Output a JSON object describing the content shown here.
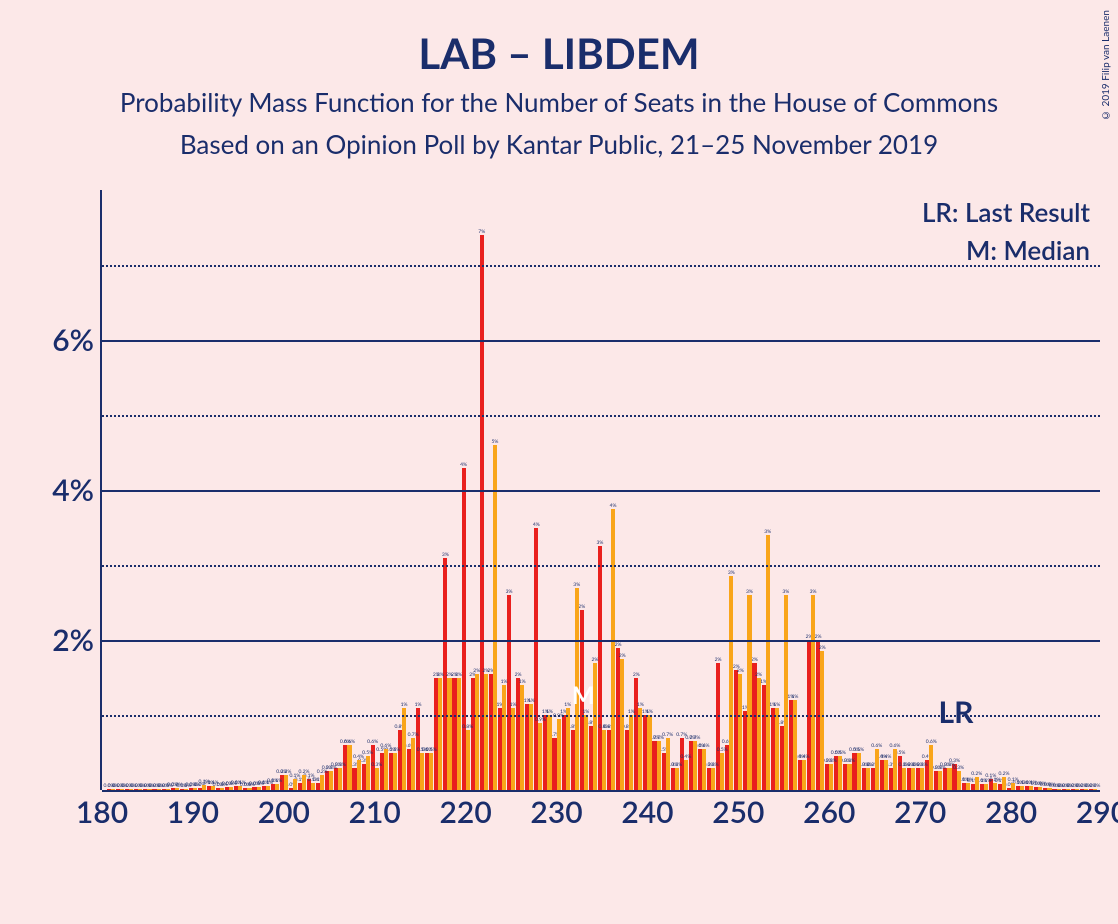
{
  "title": "LAB – LIBDEM",
  "subtitle1": "Probability Mass Function for the Number of Seats in the House of Commons",
  "subtitle2": "Based on an Opinion Poll by Kantar Public, 21–25 November 2019",
  "copyright": "© 2019 Filip van Laenen",
  "legend": {
    "lr": "LR: Last Result",
    "m": "M: Median"
  },
  "marker_lr": "LR",
  "marker_m": "M",
  "colors": {
    "background": "#fce8e8",
    "text": "#1a2d6b",
    "series1": "#e9201e",
    "series2": "#f9a51a"
  },
  "chart": {
    "type": "bar",
    "x_min": 180,
    "x_max": 290,
    "y_min": 0,
    "y_max": 8,
    "y_ticks": [
      0,
      2,
      4,
      6
    ],
    "y_minor": [
      1,
      3,
      5,
      7
    ],
    "x_ticks": [
      180,
      190,
      200,
      210,
      220,
      230,
      240,
      250,
      260,
      270,
      280,
      290
    ],
    "bar_group_width": 0.9,
    "median_x": 233,
    "lr_x": 274,
    "series": [
      {
        "name": "red",
        "color": "#e9201e",
        "data": {
          "181": 0.02,
          "182": 0.02,
          "183": 0.02,
          "184": 0.02,
          "185": 0.02,
          "186": 0.02,
          "187": 0.02,
          "188": 0.03,
          "189": 0.02,
          "190": 0.03,
          "191": 0.03,
          "192": 0.05,
          "193": 0.03,
          "194": 0.04,
          "195": 0.06,
          "196": 0.03,
          "197": 0.04,
          "198": 0.05,
          "199": 0.08,
          "200": 0.2,
          "201": 0.03,
          "202": 0.1,
          "203": 0.15,
          "204": 0.1,
          "205": 0.25,
          "206": 0.3,
          "207": 0.6,
          "208": 0.3,
          "209": 0.35,
          "210": 0.6,
          "211": 0.5,
          "212": 0.5,
          "213": 0.8,
          "214": 0.55,
          "215": 1.1,
          "216": 0.5,
          "217": 1.5,
          "218": 3.1,
          "219": 1.5,
          "220": 4.3,
          "221": 1.5,
          "222": 7.4,
          "223": 1.55,
          "224": 1.1,
          "225": 2.6,
          "226": 1.5,
          "227": 1.15,
          "228": 3.5,
          "229": 1.0,
          "230": 0.7,
          "231": 1.0,
          "232": 0.8,
          "233": 2.4,
          "234": 0.85,
          "235": 3.25,
          "236": 0.8,
          "237": 1.9,
          "238": 0.8,
          "239": 1.5,
          "240": 1.0,
          "241": 0.65,
          "242": 0.5,
          "243": 0.3,
          "244": 0.7,
          "245": 0.65,
          "246": 0.55,
          "247": 0.3,
          "248": 1.7,
          "249": 0.6,
          "250": 1.6,
          "251": 1.05,
          "252": 1.7,
          "253": 1.4,
          "254": 1.1,
          "255": 0.85,
          "256": 1.2,
          "257": 0.4,
          "258": 2.0,
          "259": 2.0,
          "260": 0.35,
          "261": 0.45,
          "262": 0.35,
          "263": 0.5,
          "264": 0.3,
          "265": 0.3,
          "266": 0.4,
          "267": 0.3,
          "268": 0.45,
          "269": 0.3,
          "270": 0.3,
          "271": 0.4,
          "272": 0.25,
          "273": 0.3,
          "274": 0.35,
          "275": 0.1,
          "276": 0.08,
          "277": 0.08,
          "278": 0.15,
          "279": 0.08,
          "280": 0.03,
          "281": 0.05,
          "282": 0.05,
          "283": 0.04,
          "284": 0.03,
          "285": 0.02,
          "286": 0.02,
          "287": 0.02,
          "288": 0.02,
          "289": 0.01
        }
      },
      {
        "name": "orange",
        "color": "#f9a51a",
        "data": {
          "181": 0.02,
          "182": 0.02,
          "183": 0.02,
          "184": 0.02,
          "185": 0.02,
          "186": 0.02,
          "187": 0.02,
          "188": 0.03,
          "189": 0.02,
          "190": 0.03,
          "191": 0.07,
          "192": 0.05,
          "193": 0.03,
          "194": 0.04,
          "195": 0.06,
          "196": 0.03,
          "197": 0.04,
          "198": 0.05,
          "199": 0.08,
          "200": 0.2,
          "201": 0.15,
          "202": 0.2,
          "203": 0.1,
          "204": 0.2,
          "205": 0.25,
          "206": 0.3,
          "207": 0.6,
          "208": 0.4,
          "209": 0.45,
          "210": 0.3,
          "211": 0.55,
          "212": 0.5,
          "213": 1.1,
          "214": 0.7,
          "215": 0.5,
          "216": 0.5,
          "217": 1.5,
          "218": 1.5,
          "219": 1.5,
          "220": 0.8,
          "221": 1.55,
          "222": 1.55,
          "223": 4.6,
          "224": 1.4,
          "225": 1.1,
          "226": 1.4,
          "227": 1.15,
          "228": 0.9,
          "229": 1.0,
          "230": 0.95,
          "231": 1.1,
          "232": 2.7,
          "233": 1.0,
          "234": 1.7,
          "235": 0.8,
          "236": 3.75,
          "237": 1.75,
          "238": 1.0,
          "239": 1.1,
          "240": 1.0,
          "241": 0.65,
          "242": 0.7,
          "243": 0.3,
          "244": 0.4,
          "245": 0.65,
          "246": 0.55,
          "247": 0.3,
          "248": 0.5,
          "249": 2.85,
          "250": 1.55,
          "251": 2.6,
          "252": 1.5,
          "253": 3.4,
          "254": 1.1,
          "255": 2.6,
          "256": 1.2,
          "257": 0.4,
          "258": 2.6,
          "259": 1.85,
          "260": 0.35,
          "261": 0.45,
          "262": 0.35,
          "263": 0.5,
          "264": 0.3,
          "265": 0.55,
          "266": 0.4,
          "267": 0.55,
          "268": 0.3,
          "269": 0.3,
          "270": 0.3,
          "271": 0.6,
          "272": 0.25,
          "273": 0.3,
          "274": 0.25,
          "275": 0.1,
          "276": 0.18,
          "277": 0.08,
          "278": 0.1,
          "279": 0.18,
          "280": 0.1,
          "281": 0.05,
          "282": 0.05,
          "283": 0.04,
          "284": 0.03,
          "285": 0.02,
          "286": 0.02,
          "287": 0.02,
          "288": 0.02,
          "289": 0.02
        }
      }
    ]
  }
}
